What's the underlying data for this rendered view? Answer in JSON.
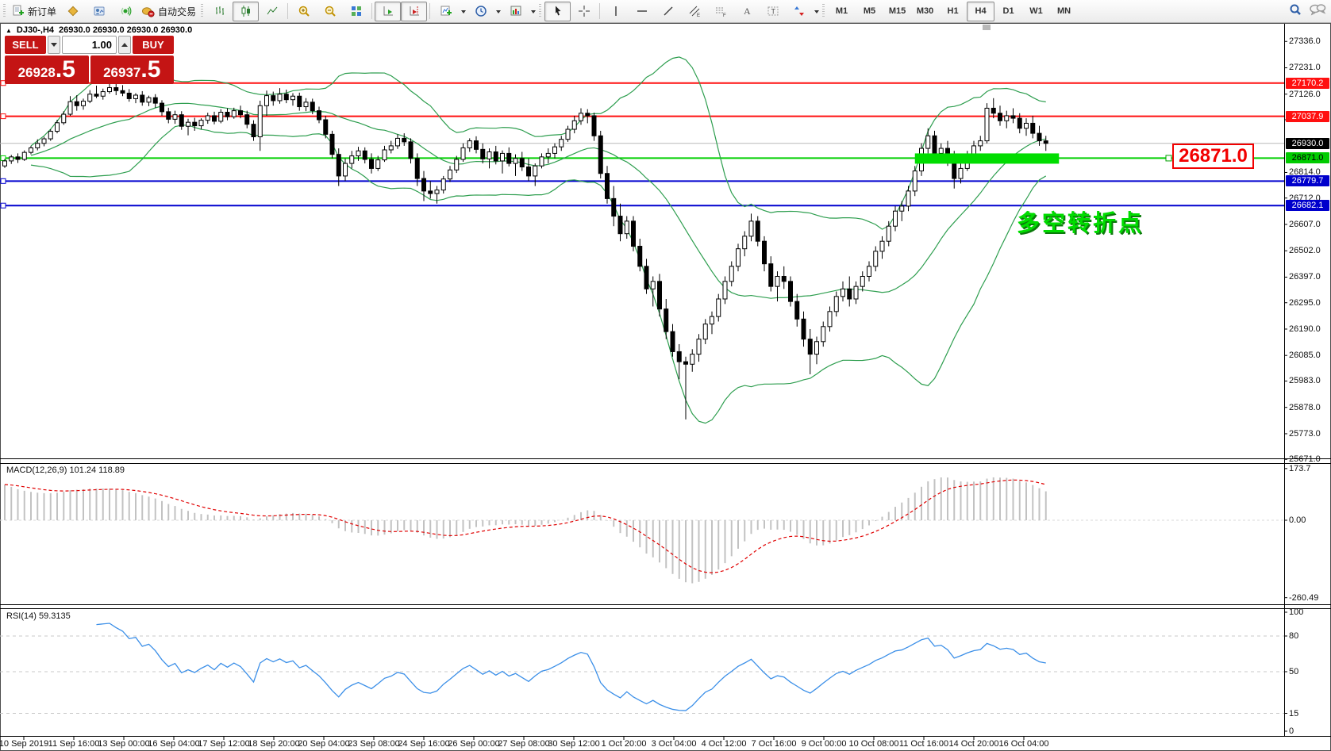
{
  "toolbar": {
    "new_order_label": "新订单",
    "autotrading_label": "自动交易",
    "timeframes": [
      "M1",
      "M5",
      "M15",
      "M30",
      "H1",
      "H4",
      "D1",
      "W1",
      "MN"
    ],
    "active_timeframe": "H4"
  },
  "header": {
    "symbol_period": "DJ30-,H4",
    "ohlc": "26930.0 26930.0 26930.0 26930.0"
  },
  "trade": {
    "sell_label": "SELL",
    "buy_label": "BUY",
    "volume": "1.00",
    "sell_main": "26928",
    "sell_frac": ".5",
    "buy_main": "26937",
    "buy_frac": ".5"
  },
  "macd": {
    "label": "MACD(12,26,9) 101.24 118.89",
    "axis_ticks": [
      {
        "text": "173.7",
        "value": 173.7
      },
      {
        "text": "0.00",
        "value": 0
      },
      {
        "text": "-260.49",
        "value": -260.49
      }
    ]
  },
  "rsi": {
    "label": "RSI(14) 59.3135",
    "axis_ticks": [
      {
        "text": "100",
        "value": 100
      },
      {
        "text": "80",
        "value": 80
      },
      {
        "text": "50",
        "value": 50
      },
      {
        "text": "15",
        "value": 15
      },
      {
        "text": "0",
        "value": 0
      }
    ],
    "dashed_levels": [
      80,
      50,
      15
    ]
  },
  "overlay": {
    "big_price_label": "26871.0",
    "annotation": "多空转折点"
  },
  "price_axis": {
    "ticks": [
      {
        "text": "27336.0",
        "price": 27336.0
      },
      {
        "text": "27231.0",
        "price": 27231.0
      },
      {
        "text": "27126.0",
        "price": 27126.0
      },
      {
        "text": "27024.0",
        "price": 27024.0
      },
      {
        "text": "26814.0",
        "price": 26814.0
      },
      {
        "text": "26712.0",
        "price": 26712.0
      },
      {
        "text": "26607.0",
        "price": 26607.0
      },
      {
        "text": "26502.0",
        "price": 26502.0
      },
      {
        "text": "26397.0",
        "price": 26397.0
      },
      {
        "text": "26295.0",
        "price": 26295.0
      },
      {
        "text": "26190.0",
        "price": 26190.0
      },
      {
        "text": "26085.0",
        "price": 26085.0
      },
      {
        "text": "25983.0",
        "price": 25983.0
      },
      {
        "text": "25878.0",
        "price": 25878.0
      },
      {
        "text": "25773.0",
        "price": 25773.0
      },
      {
        "text": "25671.0",
        "price": 25671.0
      }
    ],
    "tags": [
      {
        "text": "27170.2",
        "price": 27170.2,
        "bg": "#ff1010",
        "fg": "#ffffff"
      },
      {
        "text": "27037.9",
        "price": 27037.9,
        "bg": "#ff1010",
        "fg": "#ffffff"
      },
      {
        "text": "26930.0",
        "price": 26930.0,
        "bg": "#000000",
        "fg": "#ffffff"
      },
      {
        "text": "26871.0",
        "price": 26871.0,
        "bg": "#00cc00",
        "fg": "#000000"
      },
      {
        "text": "26779.7",
        "price": 26779.7,
        "bg": "#0000cc",
        "fg": "#ffffff"
      },
      {
        "text": "26682.1",
        "price": 26682.1,
        "bg": "#0000cc",
        "fg": "#ffffff"
      }
    ]
  },
  "time_axis": {
    "labels": [
      "10 Sep 2019",
      "11 Sep 16:00",
      "13 Sep 00:00",
      "16 Sep 04:00",
      "17 Sep 12:00",
      "18 Sep 20:00",
      "20 Sep 04:00",
      "23 Sep 08:00",
      "24 Sep 16:00",
      "26 Sep 00:00",
      "27 Sep 08:00",
      "30 Sep 12:00",
      "1 Oct 20:00",
      "3 Oct 04:00",
      "4 Oct 12:00",
      "7 Oct 16:00",
      "9 Oct 00:00",
      "10 Oct 08:00",
      "11 Oct 16:00",
      "14 Oct 20:00",
      "16 Oct 04:00"
    ]
  },
  "chart_data": {
    "type": "candlestick",
    "symbol": "DJ30-",
    "timeframe": "H4",
    "last_ohlc": [
      26930.0,
      26930.0,
      26930.0,
      26930.0
    ],
    "bid": 26928.5,
    "ask": 26937.5,
    "bid_line": {
      "price": 26930.0,
      "color": "#b8b8b8"
    },
    "price_range_visible": [
      25671.0,
      27336.0
    ],
    "horizontal_lines": [
      {
        "price": 27170.2,
        "color": "#ff1010"
      },
      {
        "price": 27037.9,
        "color": "#ff1010"
      },
      {
        "price": 26871.0,
        "color": "#00cf00"
      },
      {
        "price": 26779.7,
        "color": "#0000cf"
      },
      {
        "price": 26682.1,
        "color": "#0000cf"
      }
    ],
    "highlight_bar": {
      "price": 26871.0,
      "bar_start": 139,
      "bar_end": 161,
      "color": "#00dd00"
    },
    "indicators": [
      {
        "type": "bollinger",
        "period": 20,
        "deviations": 2,
        "color": "#2e9e4f"
      },
      {
        "type": "macd",
        "fast": 12,
        "slow": 26,
        "signal": 9,
        "main": 101.24,
        "signal_value": 118.89,
        "histogram_color": "#c2c2c2",
        "signal_color": "#e00000",
        "axis_range": [
          173.7,
          -260.49
        ]
      },
      {
        "type": "rsi",
        "period": 14,
        "value": 59.3135,
        "color": "#3b8fe8",
        "levels": [
          80,
          50,
          15
        ]
      }
    ],
    "candles": [
      [
        26840,
        26868,
        26832,
        26860
      ],
      [
        26860,
        26884,
        26848,
        26876
      ],
      [
        26876,
        26890,
        26852,
        26866
      ],
      [
        26866,
        26902,
        26860,
        26894
      ],
      [
        26894,
        26920,
        26886,
        26912
      ],
      [
        26912,
        26946,
        26902,
        26930
      ],
      [
        26930,
        26956,
        26918,
        26948
      ],
      [
        26948,
        26986,
        26940,
        26978
      ],
      [
        26978,
        27024,
        26970,
        27012
      ],
      [
        27012,
        27058,
        27004,
        27046
      ],
      [
        27046,
        27118,
        27040,
        27096
      ],
      [
        27096,
        27122,
        27060,
        27080
      ],
      [
        27080,
        27108,
        27064,
        27098
      ],
      [
        27098,
        27142,
        27090,
        27126
      ],
      [
        27126,
        27160,
        27110,
        27118
      ],
      [
        27118,
        27148,
        27104,
        27136
      ],
      [
        27136,
        27176,
        27128,
        27152
      ],
      [
        27152,
        27168,
        27122,
        27140
      ],
      [
        27140,
        27162,
        27118,
        27130
      ],
      [
        27130,
        27146,
        27096,
        27108
      ],
      [
        27108,
        27130,
        27090,
        27122
      ],
      [
        27122,
        27138,
        27080,
        27094
      ],
      [
        27094,
        27120,
        27078,
        27112
      ],
      [
        27112,
        27126,
        27072,
        27090
      ],
      [
        27090,
        27102,
        27040,
        27056
      ],
      [
        27056,
        27072,
        27010,
        27026
      ],
      [
        27026,
        27060,
        27008,
        27044
      ],
      [
        27044,
        27058,
        26984,
        26998
      ],
      [
        26998,
        27028,
        26962,
        27014
      ],
      [
        27014,
        27032,
        26980,
        27000
      ],
      [
        27000,
        27030,
        26986,
        27022
      ],
      [
        27022,
        27052,
        27008,
        27040
      ],
      [
        27040,
        27056,
        27006,
        27018
      ],
      [
        27018,
        27066,
        27010,
        27054
      ],
      [
        27054,
        27070,
        27022,
        27036
      ],
      [
        27036,
        27072,
        27028,
        27060
      ],
      [
        27060,
        27080,
        27030,
        27044
      ],
      [
        27044,
        27060,
        26990,
        27006
      ],
      [
        27006,
        27022,
        26940,
        26956
      ],
      [
        26956,
        27100,
        26900,
        27080
      ],
      [
        27080,
        27140,
        27040,
        27120
      ],
      [
        27120,
        27136,
        27080,
        27100
      ],
      [
        27100,
        27150,
        27088,
        27126
      ],
      [
        27126,
        27144,
        27090,
        27104
      ],
      [
        27104,
        27130,
        27080,
        27118
      ],
      [
        27118,
        27132,
        27060,
        27076
      ],
      [
        27076,
        27110,
        27058,
        27094
      ],
      [
        27094,
        27108,
        27046,
        27060
      ],
      [
        27060,
        27076,
        27010,
        27024
      ],
      [
        27024,
        27040,
        26950,
        26966
      ],
      [
        26966,
        26980,
        26870,
        26886
      ],
      [
        26886,
        26910,
        26760,
        26800
      ],
      [
        26800,
        26870,
        26780,
        26850
      ],
      [
        26850,
        26900,
        26830,
        26880
      ],
      [
        26880,
        26916,
        26860,
        26900
      ],
      [
        26900,
        26914,
        26850,
        26866
      ],
      [
        26866,
        26890,
        26810,
        26830
      ],
      [
        26830,
        26880,
        26820,
        26864
      ],
      [
        26864,
        26920,
        26856,
        26904
      ],
      [
        26904,
        26940,
        26890,
        26920
      ],
      [
        26920,
        26966,
        26908,
        26950
      ],
      [
        26950,
        26970,
        26920,
        26936
      ],
      [
        26936,
        26950,
        26850,
        26870
      ],
      [
        26870,
        26890,
        26760,
        26790
      ],
      [
        26790,
        26820,
        26700,
        26740
      ],
      [
        26740,
        26780,
        26710,
        26730
      ],
      [
        26730,
        26760,
        26690,
        26744
      ],
      [
        26744,
        26800,
        26730,
        26788
      ],
      [
        26788,
        26840,
        26776,
        26824
      ],
      [
        26824,
        26880,
        26812,
        26866
      ],
      [
        26866,
        26930,
        26856,
        26912
      ],
      [
        26912,
        26950,
        26896,
        26940
      ],
      [
        26940,
        26958,
        26890,
        26906
      ],
      [
        26906,
        26930,
        26850,
        26868
      ],
      [
        26868,
        26910,
        26830,
        26896
      ],
      [
        26896,
        26920,
        26846,
        26860
      ],
      [
        26860,
        26902,
        26810,
        26890
      ],
      [
        26890,
        26914,
        26838,
        26850
      ],
      [
        26850,
        26886,
        26800,
        26870
      ],
      [
        26870,
        26896,
        26820,
        26836
      ],
      [
        26836,
        26870,
        26780,
        26800
      ],
      [
        26800,
        26850,
        26760,
        26840
      ],
      [
        26840,
        26890,
        26830,
        26876
      ],
      [
        26876,
        26910,
        26850,
        26890
      ],
      [
        26890,
        26930,
        26870,
        26916
      ],
      [
        26916,
        26960,
        26900,
        26946
      ],
      [
        26946,
        27000,
        26936,
        26986
      ],
      [
        26986,
        27040,
        26970,
        27020
      ],
      [
        27020,
        27070,
        27004,
        27050
      ],
      [
        27050,
        27066,
        27010,
        27040
      ],
      [
        27040,
        27052,
        26940,
        26960
      ],
      [
        26960,
        26980,
        26790,
        26810
      ],
      [
        26810,
        26840,
        26690,
        26710
      ],
      [
        26710,
        26760,
        26600,
        26640
      ],
      [
        26640,
        26690,
        26540,
        26570
      ],
      [
        26570,
        26640,
        26550,
        26620
      ],
      [
        26620,
        26640,
        26500,
        26520
      ],
      [
        26520,
        26550,
        26420,
        26440
      ],
      [
        26440,
        26470,
        26330,
        26350
      ],
      [
        26350,
        26400,
        26280,
        26380
      ],
      [
        26380,
        26410,
        26240,
        26270
      ],
      [
        26270,
        26310,
        26150,
        26180
      ],
      [
        26180,
        26210,
        26080,
        26100
      ],
      [
        26100,
        26130,
        25990,
        26060
      ],
      [
        26060,
        26080,
        25830,
        26050
      ],
      [
        26050,
        26110,
        26020,
        26090
      ],
      [
        26090,
        26170,
        26060,
        26150
      ],
      [
        26150,
        26230,
        26130,
        26210
      ],
      [
        26210,
        26260,
        26170,
        26240
      ],
      [
        26240,
        26330,
        26220,
        26310
      ],
      [
        26310,
        26400,
        26290,
        26380
      ],
      [
        26380,
        26460,
        26360,
        26440
      ],
      [
        26440,
        26530,
        26420,
        26510
      ],
      [
        26510,
        26580,
        26480,
        26560
      ],
      [
        26560,
        26650,
        26540,
        26620
      ],
      [
        26620,
        26640,
        26520,
        26540
      ],
      [
        26540,
        26560,
        26420,
        26450
      ],
      [
        26450,
        26480,
        26340,
        26360
      ],
      [
        26360,
        26420,
        26300,
        26400
      ],
      [
        26400,
        26440,
        26350,
        26380
      ],
      [
        26380,
        26400,
        26280,
        26300
      ],
      [
        26300,
        26330,
        26200,
        26230
      ],
      [
        26230,
        26260,
        26120,
        26150
      ],
      [
        26150,
        26190,
        26010,
        26090
      ],
      [
        26090,
        26160,
        26050,
        26140
      ],
      [
        26140,
        26220,
        26120,
        26200
      ],
      [
        26200,
        26280,
        26180,
        26260
      ],
      [
        26260,
        26340,
        26240,
        26320
      ],
      [
        26320,
        26380,
        26300,
        26350
      ],
      [
        26350,
        26400,
        26280,
        26310
      ],
      [
        26310,
        26380,
        26290,
        26360
      ],
      [
        26360,
        26420,
        26340,
        26400
      ],
      [
        26400,
        26460,
        26380,
        26440
      ],
      [
        26440,
        26520,
        26420,
        26500
      ],
      [
        26500,
        26560,
        26470,
        26540
      ],
      [
        26540,
        26620,
        26520,
        26600
      ],
      [
        26600,
        26680,
        26580,
        26660
      ],
      [
        26660,
        26700,
        26620,
        26680
      ],
      [
        26680,
        26760,
        26660,
        26740
      ],
      [
        26740,
        26840,
        26720,
        26820
      ],
      [
        26820,
        26930,
        26800,
        26910
      ],
      [
        26910,
        26990,
        26890,
        26960
      ],
      [
        26960,
        26980,
        26860,
        26890
      ],
      [
        26890,
        26930,
        26850,
        26910
      ],
      [
        26910,
        26940,
        26840,
        26870
      ],
      [
        26870,
        26900,
        26750,
        26790
      ],
      [
        26790,
        26850,
        26770,
        26830
      ],
      [
        26830,
        26900,
        26820,
        26880
      ],
      [
        26880,
        26940,
        26860,
        26920
      ],
      [
        26920,
        26960,
        26900,
        26940
      ],
      [
        26940,
        27090,
        26930,
        27070
      ],
      [
        27070,
        27110,
        27030,
        27050
      ],
      [
        27050,
        27080,
        27000,
        27020
      ],
      [
        27020,
        27060,
        26990,
        27040
      ],
      [
        27040,
        27070,
        27010,
        27030
      ],
      [
        27030,
        27050,
        26970,
        26990
      ],
      [
        26990,
        27030,
        26960,
        27010
      ],
      [
        27010,
        27040,
        26950,
        26970
      ],
      [
        26970,
        27000,
        26920,
        26940
      ],
      [
        26940,
        26960,
        26900,
        26930
      ]
    ]
  }
}
